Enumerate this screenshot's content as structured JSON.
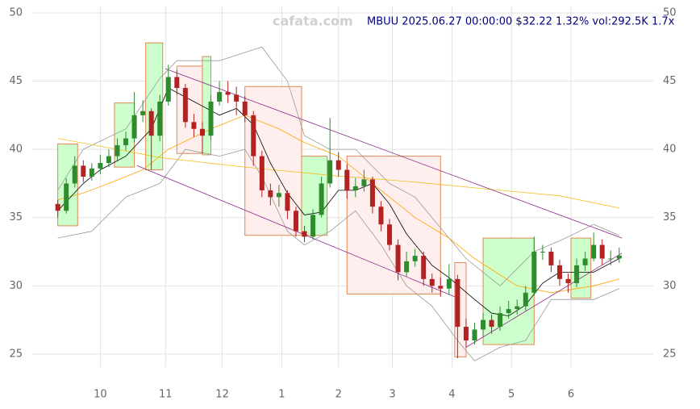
{
  "chart_data": {
    "type": "candlestick",
    "title": "MBUU 2025.06.27 00:00:00 $32.22 1.32% vol:292.5K 1.7x",
    "watermark": "cafata.com",
    "up_color": "#2e8b2e",
    "down_color": "#b22222",
    "grid": true,
    "xlim": [
      -24,
      195
    ],
    "ylim": [
      24.05,
      50.47
    ],
    "xticks": [
      {
        "value": 0,
        "label": "10"
      },
      {
        "value": 23,
        "label": "11"
      },
      {
        "value": 43,
        "label": "12"
      },
      {
        "value": 64,
        "label": "1"
      },
      {
        "value": 84,
        "label": "2"
      },
      {
        "value": 103,
        "label": "3"
      },
      {
        "value": 124,
        "label": "4"
      },
      {
        "value": 145,
        "label": "5"
      },
      {
        "value": 166,
        "label": "6"
      }
    ],
    "yticks": [
      25,
      30,
      35,
      40,
      45,
      50
    ],
    "x": [
      -15,
      -12,
      -9,
      -6,
      -3,
      0,
      3,
      6,
      9,
      12,
      15,
      18,
      21,
      24,
      27,
      30,
      33,
      36,
      39,
      42,
      45,
      48,
      51,
      54,
      57,
      60,
      63,
      66,
      69,
      72,
      75,
      78,
      81,
      84,
      87,
      90,
      93,
      96,
      99,
      102,
      105,
      108,
      111,
      114,
      117,
      120,
      123,
      126,
      129,
      132,
      135,
      138,
      141,
      144,
      147,
      150,
      153,
      156,
      159,
      162,
      165,
      168,
      171,
      174,
      177,
      180,
      183
    ],
    "open": [
      36.0,
      35.5,
      37.5,
      38.8,
      38.0,
      38.6,
      39.0,
      39.5,
      40.3,
      40.8,
      42.5,
      42.8,
      41.0,
      43.5,
      45.3,
      44.5,
      42.0,
      41.5,
      41.0,
      43.5,
      44.2,
      44.0,
      43.5,
      42.5,
      39.5,
      37.0,
      36.5,
      36.8,
      35.5,
      34.0,
      33.6,
      35.2,
      37.5,
      39.2,
      38.5,
      37.0,
      37.3,
      37.8,
      35.8,
      34.5,
      33.0,
      31.0,
      31.8,
      32.2,
      30.5,
      30.0,
      29.8,
      30.5,
      27.0,
      26.0,
      26.8,
      27.5,
      27.0,
      28.0,
      28.3,
      28.5,
      29.5,
      32.5,
      32.5,
      31.5,
      30.5,
      30.2,
      31.5,
      32.0,
      33.0,
      32.0,
      32.0
    ],
    "high": [
      36.3,
      37.9,
      39.5,
      39.2,
      39.0,
      39.6,
      40.0,
      40.8,
      41.3,
      44.2,
      43.6,
      43.0,
      44.0,
      46.2,
      45.8,
      44.8,
      42.6,
      42.0,
      44.0,
      45.0,
      45.0,
      44.6,
      43.9,
      42.8,
      39.9,
      37.5,
      37.4,
      37.0,
      35.8,
      34.4,
      35.6,
      38.0,
      42.3,
      39.8,
      38.9,
      37.9,
      38.5,
      38.0,
      36.2,
      34.9,
      33.4,
      32.5,
      32.7,
      32.5,
      30.9,
      30.6,
      31.6,
      30.8,
      27.6,
      27.3,
      28.0,
      27.9,
      28.5,
      28.9,
      29.0,
      30.0,
      33.6,
      33.0,
      32.8,
      31.9,
      30.9,
      32.0,
      32.5,
      33.9,
      33.4,
      32.6,
      32.8
    ],
    "low": [
      35.0,
      35.3,
      37.2,
      37.6,
      37.7,
      38.2,
      38.7,
      39.2,
      39.9,
      40.5,
      42.0,
      38.5,
      40.6,
      43.2,
      44.0,
      41.6,
      40.9,
      39.7,
      40.7,
      43.2,
      43.4,
      42.5,
      42.0,
      38.8,
      36.5,
      35.9,
      35.8,
      34.9,
      33.6,
      33.2,
      33.4,
      35.0,
      37.2,
      38.0,
      36.4,
      36.5,
      36.9,
      35.3,
      34.0,
      32.6,
      30.4,
      30.7,
      31.4,
      30.0,
      29.5,
      29.2,
      29.4,
      24.7,
      25.5,
      25.7,
      26.3,
      26.5,
      26.7,
      27.6,
      27.9,
      28.2,
      29.3,
      31.9,
      31.0,
      30.0,
      29.5,
      29.9,
      31.1,
      31.8,
      31.5,
      31.5,
      31.7
    ],
    "close": [
      35.5,
      37.5,
      38.8,
      38.0,
      38.6,
      39.0,
      39.5,
      40.3,
      40.8,
      42.5,
      42.8,
      41.0,
      43.5,
      45.3,
      44.5,
      42.0,
      41.5,
      41.0,
      43.5,
      44.2,
      44.0,
      43.5,
      42.5,
      39.5,
      37.0,
      36.5,
      36.8,
      35.5,
      34.0,
      33.6,
      35.2,
      37.5,
      39.2,
      38.5,
      37.0,
      37.3,
      37.8,
      35.8,
      34.5,
      33.0,
      31.0,
      31.8,
      32.2,
      30.5,
      30.0,
      29.8,
      30.5,
      27.0,
      26.0,
      26.8,
      27.5,
      27.0,
      28.0,
      28.3,
      28.5,
      29.5,
      32.5,
      32.5,
      31.5,
      30.5,
      30.2,
      31.5,
      32.0,
      33.0,
      32.0,
      32.0,
      32.22
    ],
    "zones": [
      {
        "x": [
          -15,
          -8
        ],
        "y": [
          34.4,
          40.4
        ],
        "color": "#ccffcc"
      },
      {
        "x": [
          5,
          12
        ],
        "y": [
          38.7,
          43.4
        ],
        "color": "#ccffcc"
      },
      {
        "x": [
          16,
          22
        ],
        "y": [
          38.5,
          47.8
        ],
        "color": "#ccffcc"
      },
      {
        "x": [
          27,
          36
        ],
        "y": [
          39.7,
          46.1
        ],
        "color": "#ffeeee"
      },
      {
        "x": [
          36,
          39
        ],
        "y": [
          39.6,
          46.8
        ],
        "color": "#ccffcc"
      },
      {
        "x": [
          51,
          71
        ],
        "y": [
          33.7,
          44.6
        ],
        "color": "#ffeeee"
      },
      {
        "x": [
          71,
          80
        ],
        "y": [
          33.7,
          39.5
        ],
        "color": "#ccffcc"
      },
      {
        "x": [
          87,
          120
        ],
        "y": [
          29.4,
          39.5
        ],
        "color": "#ffeeee"
      },
      {
        "x": [
          125,
          129
        ],
        "y": [
          24.8,
          31.7
        ],
        "color": "#ffeeee"
      },
      {
        "x": [
          135,
          153
        ],
        "y": [
          25.7,
          33.5
        ],
        "color": "#ccffcc"
      },
      {
        "x": [
          166,
          173
        ],
        "y": [
          29.1,
          33.5
        ],
        "color": "#ccffcc"
      }
    ],
    "series": [
      {
        "color": "#999999",
        "x": [
          -15,
          -6,
          9,
          21,
          27,
          42,
          57,
          66,
          72,
          81,
          90,
          102,
          111,
          123,
          129,
          141,
          153,
          162,
          174,
          183
        ],
        "values": [
          37,
          40,
          41.5,
          45.2,
          46.5,
          46.5,
          47.5,
          45,
          41,
          40,
          40,
          37.5,
          36.5,
          33.5,
          32,
          30,
          32.5,
          33.3,
          34.5,
          33.7
        ]
      },
      {
        "color": "#999999",
        "x": [
          -15,
          -3,
          9,
          21,
          30,
          42,
          51,
          57,
          66,
          72,
          81,
          90,
          99,
          108,
          117,
          126,
          132,
          141,
          150,
          159,
          174,
          183
        ],
        "values": [
          33.5,
          34,
          36.5,
          37.5,
          40,
          39.5,
          40,
          38,
          34,
          33,
          34,
          35.5,
          33,
          30,
          28.5,
          26,
          24.5,
          25.5,
          26,
          29,
          29,
          29.8
        ]
      },
      {
        "color": "#f0c020",
        "x": [
          -15,
          6,
          21,
          51,
          81,
          111,
          141,
          162,
          183
        ],
        "values": [
          40.8,
          40,
          39.4,
          38.7,
          38.1,
          37.6,
          37,
          36.6,
          35.7
        ]
      },
      {
        "color": "#ffa500",
        "x": [
          -15,
          -6,
          3,
          15,
          24,
          39,
          51,
          63,
          72,
          84,
          90,
          99,
          111,
          123,
          132,
          147,
          159,
          174,
          183
        ],
        "values": [
          36.3,
          36.8,
          37.5,
          38.5,
          40,
          41.5,
          42.5,
          41.5,
          40.5,
          39.5,
          38.5,
          37,
          35,
          33.5,
          32,
          30,
          29.5,
          30,
          30.5
        ]
      },
      {
        "color": "#000000",
        "x": [
          -15,
          -6,
          0,
          9,
          18,
          24,
          33,
          42,
          48,
          54,
          60,
          66,
          72,
          78,
          84,
          90,
          96,
          102,
          108,
          117,
          123,
          132,
          138,
          144,
          150,
          156,
          162,
          168,
          174,
          183
        ],
        "values": [
          35.5,
          37.5,
          38.5,
          39.5,
          41.5,
          44.5,
          43.5,
          42.5,
          43,
          41.8,
          39,
          36.8,
          35.2,
          35.4,
          37,
          37,
          37.5,
          36,
          33.8,
          31.5,
          30.6,
          29,
          28,
          27.8,
          28.6,
          30.2,
          31,
          31,
          31,
          32
        ]
      }
    ],
    "trendlines": [
      {
        "color": "#8b2a8b",
        "x": [
          23,
          184
        ],
        "y": [
          45.9,
          33.5
        ]
      },
      {
        "color": "#8b2a8b",
        "x": [
          13,
          125
        ],
        "y": [
          38.8,
          29.2
        ]
      },
      {
        "color": "#8b2a8b",
        "x": [
          129,
          184
        ],
        "y": [
          25.5,
          32.4
        ]
      }
    ]
  }
}
